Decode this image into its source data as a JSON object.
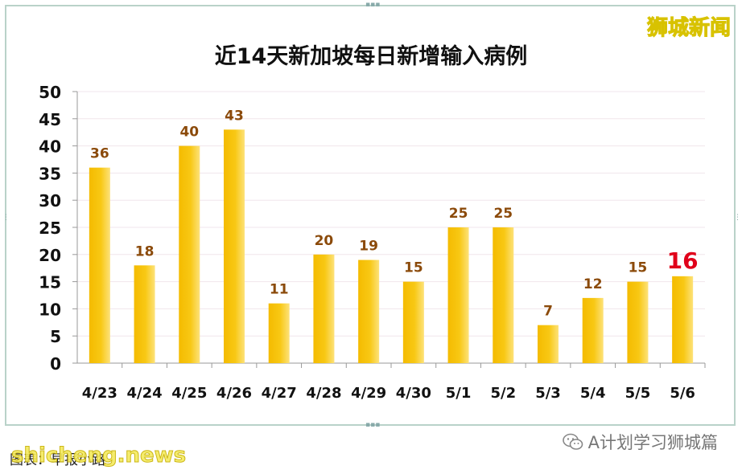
{
  "watermark": "狮城新闻",
  "footer": {
    "wechat_label": "A计划学习狮城篇",
    "credit": "图表：早报小路",
    "logo": "shicheng.news"
  },
  "colors": {
    "bar": "#f6c000",
    "bar_light": "#fde27a",
    "label": "#8b4a0a",
    "highlight": "#e0001a",
    "grid": "#f1e6ec"
  },
  "chart_data": {
    "type": "bar",
    "title": "近14天新加坡每日新增输入病例",
    "xlabel": "",
    "ylabel": "",
    "ylim": [
      0,
      50
    ],
    "yticks": [
      0,
      5,
      10,
      15,
      20,
      25,
      30,
      35,
      40,
      45,
      50
    ],
    "grid": true,
    "categories": [
      "4/23",
      "4/24",
      "4/25",
      "4/26",
      "4/27",
      "4/28",
      "4/29",
      "4/30",
      "5/1",
      "5/2",
      "5/3",
      "5/4",
      "5/5",
      "5/6"
    ],
    "values": [
      36,
      18,
      40,
      43,
      11,
      20,
      19,
      15,
      25,
      25,
      7,
      12,
      15,
      16
    ],
    "highlight_index": 13
  }
}
